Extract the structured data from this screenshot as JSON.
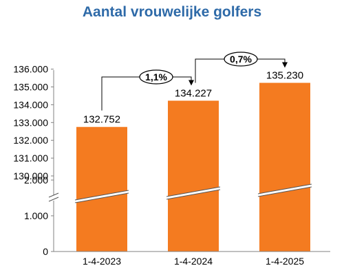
{
  "chart_data": {
    "type": "bar",
    "title": "Aantal vrouwelijke golfers",
    "categories": [
      "1-4-2023",
      "1-4-2024",
      "1-4-2025"
    ],
    "values": [
      132752,
      134227,
      135230
    ],
    "value_labels": [
      "132.752",
      "134.227",
      "135.230"
    ],
    "y_axis_break": true,
    "ylim_lower_segment": [
      0,
      2000
    ],
    "ylim_upper_segment": [
      130000,
      136000
    ],
    "yticks_lower": [
      "0",
      "1.000",
      "2.000"
    ],
    "yticks_upper": [
      "130.000",
      "131.000",
      "132.000",
      "133.000",
      "134.000",
      "135.000",
      "136.000"
    ],
    "annotations": [
      {
        "from": "1-4-2023",
        "to": "1-4-2024",
        "label": "1,1%"
      },
      {
        "from": "1-4-2024",
        "to": "1-4-2025",
        "label": "0,7%"
      }
    ],
    "bar_color": "#f47b20",
    "title_color": "#2e6aa8",
    "grid": false,
    "legend": "none"
  }
}
